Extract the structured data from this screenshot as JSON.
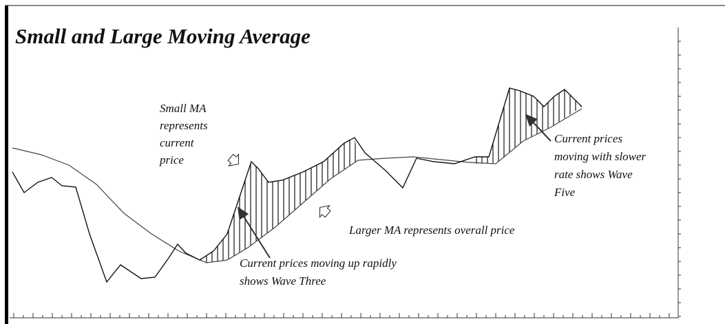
{
  "title": "Small and Large Moving Average",
  "annotations": {
    "small_ma": [
      "Small MA",
      "represents",
      "current",
      "price"
    ],
    "wave_five": [
      "Current prices",
      "moving with slower",
      "rate shows Wave",
      "Five"
    ],
    "larger_ma": [
      "Larger MA represents overall price"
    ],
    "wave_three": [
      "Current prices moving up rapidly",
      "shows Wave Three"
    ]
  }
}
